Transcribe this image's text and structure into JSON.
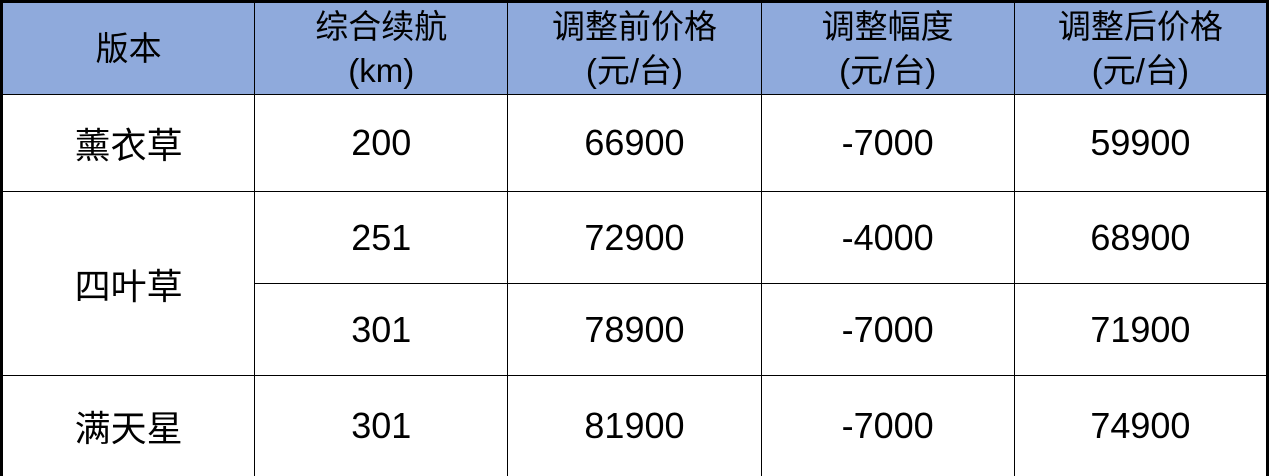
{
  "table": {
    "header": [
      {
        "title": "版本",
        "unit": ""
      },
      {
        "title": "综合续航",
        "unit": "(km)"
      },
      {
        "title": "调整前价格",
        "unit": "(元/台)"
      },
      {
        "title": "调整幅度",
        "unit": "(元/台)"
      },
      {
        "title": "调整后价格",
        "unit": "(元/台)"
      }
    ],
    "rows": [
      {
        "version": "薰衣草",
        "range": "200",
        "price_before": "66900",
        "adjustment": "-7000",
        "price_after": "59900"
      },
      {
        "version": "四叶草",
        "range": "251",
        "price_before": "72900",
        "adjustment": "-4000",
        "price_after": "68900"
      },
      {
        "version": "四叶草",
        "range": "301",
        "price_before": "78900",
        "adjustment": "-7000",
        "price_after": "71900"
      },
      {
        "version": "满天星",
        "range": "301",
        "price_before": "81900",
        "adjustment": "-7000",
        "price_after": "74900"
      }
    ]
  },
  "colors": {
    "header_bg": "#8FAADC",
    "border": "#000000",
    "text": "#000000",
    "body_bg": "#FFFFFF"
  },
  "chart_data": {
    "type": "table",
    "title": "",
    "columns": [
      "版本",
      "综合续航(km)",
      "调整前价格(元/台)",
      "调整幅度(元/台)",
      "调整后价格(元/台)"
    ],
    "rows": [
      [
        "薰衣草",
        200,
        66900,
        -7000,
        59900
      ],
      [
        "四叶草",
        251,
        72900,
        -4000,
        68900
      ],
      [
        "四叶草",
        301,
        78900,
        -7000,
        71900
      ],
      [
        "满天星",
        301,
        81900,
        -7000,
        74900
      ]
    ],
    "merged_cells": [
      {
        "column": "版本",
        "value": "四叶草",
        "spans_rows": [
          2,
          3
        ]
      }
    ],
    "layout_hints": {
      "header_fill": "#8FAADC",
      "grid": "all-borders",
      "outer_border_px": 3,
      "inner_border_px": 1.5,
      "column_widths_pct": [
        20,
        20,
        20,
        20,
        20
      ]
    }
  }
}
